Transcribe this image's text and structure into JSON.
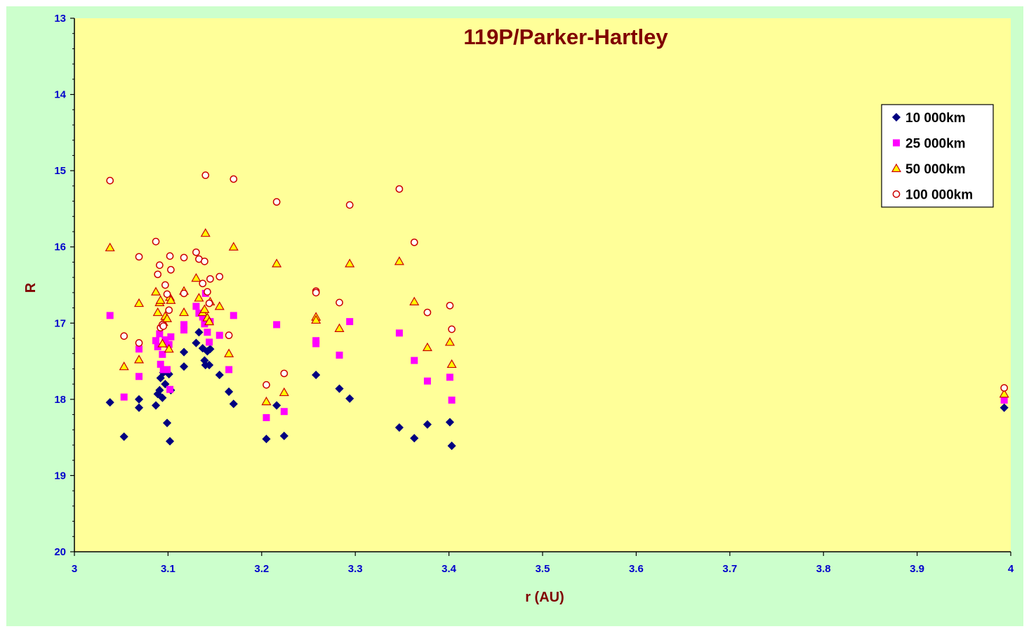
{
  "chart_data": {
    "type": "scatter",
    "title": "119P/Parker-Hartley",
    "xlabel": "r (AU)",
    "ylabel": "R",
    "xlim": [
      3,
      4
    ],
    "ylim": [
      13,
      20
    ],
    "y_inverted": true,
    "x_ticks": [
      "3",
      "3.1",
      "3.2",
      "3.3",
      "3.4",
      "3.5",
      "3.6",
      "3.7",
      "3.8",
      "3.9",
      "4"
    ],
    "y_ticks": [
      "13",
      "14",
      "15",
      "16",
      "17",
      "18",
      "19",
      "20"
    ],
    "grid": false,
    "legend_position": "top-right",
    "colors": {
      "outer_background": "#ccffcc",
      "plot_background": "#ffff99",
      "axis": "#000000",
      "tick_labels": "#0000cc",
      "titles": "#800000"
    },
    "series": [
      {
        "name": "10 000km",
        "marker": "diamond",
        "color": "#000080",
        "points": [
          [
            3.038,
            18.04
          ],
          [
            3.053,
            18.49
          ],
          [
            3.069,
            18.11
          ],
          [
            3.069,
            18.0
          ],
          [
            3.087,
            18.08
          ],
          [
            3.089,
            17.93
          ],
          [
            3.091,
            17.88
          ],
          [
            3.092,
            17.72
          ],
          [
            3.094,
            17.98
          ],
          [
            3.095,
            17.65
          ],
          [
            3.097,
            17.8
          ],
          [
            3.099,
            18.31
          ],
          [
            3.101,
            17.67
          ],
          [
            3.102,
            18.55
          ],
          [
            3.103,
            17.88
          ],
          [
            3.117,
            17.38
          ],
          [
            3.117,
            17.57
          ],
          [
            3.13,
            17.26
          ],
          [
            3.133,
            17.12
          ],
          [
            3.137,
            17.33
          ],
          [
            3.139,
            17.49
          ],
          [
            3.14,
            17.55
          ],
          [
            3.142,
            17.37
          ],
          [
            3.144,
            17.55
          ],
          [
            3.145,
            17.34
          ],
          [
            3.155,
            17.68
          ],
          [
            3.165,
            17.9
          ],
          [
            3.17,
            18.06
          ],
          [
            3.205,
            18.52
          ],
          [
            3.216,
            18.08
          ],
          [
            3.224,
            18.48
          ],
          [
            3.258,
            17.68
          ],
          [
            3.283,
            17.86
          ],
          [
            3.294,
            17.99
          ],
          [
            3.347,
            18.37
          ],
          [
            3.363,
            18.51
          ],
          [
            3.377,
            18.33
          ],
          [
            3.401,
            18.3
          ],
          [
            3.403,
            18.61
          ],
          [
            3.993,
            18.11
          ]
        ]
      },
      {
        "name": "25 000km",
        "marker": "square",
        "color": "#ff00ff",
        "points": [
          [
            3.038,
            16.9
          ],
          [
            3.053,
            17.97
          ],
          [
            3.069,
            17.34
          ],
          [
            3.069,
            17.7
          ],
          [
            3.087,
            17.23
          ],
          [
            3.089,
            17.31
          ],
          [
            3.091,
            17.14
          ],
          [
            3.092,
            17.54
          ],
          [
            3.094,
            17.41
          ],
          [
            3.095,
            17.61
          ],
          [
            3.097,
            17.22
          ],
          [
            3.099,
            17.61
          ],
          [
            3.101,
            17.28
          ],
          [
            3.102,
            17.87
          ],
          [
            3.103,
            17.18
          ],
          [
            3.117,
            17.02
          ],
          [
            3.117,
            17.09
          ],
          [
            3.13,
            16.78
          ],
          [
            3.133,
            16.87
          ],
          [
            3.137,
            16.92
          ],
          [
            3.139,
            17.01
          ],
          [
            3.14,
            16.61
          ],
          [
            3.142,
            17.12
          ],
          [
            3.144,
            17.25
          ],
          [
            3.145,
            16.98
          ],
          [
            3.155,
            17.16
          ],
          [
            3.165,
            17.61
          ],
          [
            3.17,
            16.9
          ],
          [
            3.205,
            18.24
          ],
          [
            3.216,
            17.02
          ],
          [
            3.224,
            18.16
          ],
          [
            3.258,
            17.23
          ],
          [
            3.258,
            17.27
          ],
          [
            3.283,
            17.42
          ],
          [
            3.294,
            16.98
          ],
          [
            3.347,
            17.13
          ],
          [
            3.363,
            17.49
          ],
          [
            3.377,
            17.76
          ],
          [
            3.401,
            17.71
          ],
          [
            3.403,
            18.01
          ],
          [
            3.993,
            18.01
          ]
        ]
      },
      {
        "name": "50 000km",
        "marker": "triangle",
        "color": "#cc0000",
        "fill": "#ffff00",
        "points": [
          [
            3.038,
            16.01
          ],
          [
            3.053,
            17.57
          ],
          [
            3.069,
            16.74
          ],
          [
            3.069,
            17.48
          ],
          [
            3.087,
            16.59
          ],
          [
            3.089,
            16.86
          ],
          [
            3.091,
            16.73
          ],
          [
            3.092,
            16.7
          ],
          [
            3.094,
            17.27
          ],
          [
            3.095,
            16.99
          ],
          [
            3.097,
            16.91
          ],
          [
            3.099,
            16.94
          ],
          [
            3.101,
            17.34
          ],
          [
            3.102,
            16.66
          ],
          [
            3.103,
            16.7
          ],
          [
            3.117,
            16.58
          ],
          [
            3.117,
            16.86
          ],
          [
            3.13,
            16.41
          ],
          [
            3.133,
            16.67
          ],
          [
            3.137,
            16.86
          ],
          [
            3.139,
            16.82
          ],
          [
            3.14,
            15.82
          ],
          [
            3.142,
            16.93
          ],
          [
            3.144,
            16.98
          ],
          [
            3.145,
            16.72
          ],
          [
            3.155,
            16.78
          ],
          [
            3.165,
            17.4
          ],
          [
            3.17,
            16.0
          ],
          [
            3.205,
            18.03
          ],
          [
            3.216,
            16.22
          ],
          [
            3.224,
            17.91
          ],
          [
            3.258,
            16.92
          ],
          [
            3.258,
            16.96
          ],
          [
            3.283,
            17.07
          ],
          [
            3.294,
            16.22
          ],
          [
            3.347,
            16.19
          ],
          [
            3.363,
            16.72
          ],
          [
            3.377,
            17.32
          ],
          [
            3.401,
            17.25
          ],
          [
            3.403,
            17.54
          ],
          [
            3.993,
            17.93
          ]
        ]
      },
      {
        "name": "100 000km",
        "marker": "circle",
        "color": "#cc0000",
        "fill": "#ffffff",
        "points": [
          [
            3.038,
            15.13
          ],
          [
            3.053,
            17.17
          ],
          [
            3.069,
            16.13
          ],
          [
            3.069,
            17.26
          ],
          [
            3.087,
            15.93
          ],
          [
            3.089,
            16.36
          ],
          [
            3.091,
            16.24
          ],
          [
            3.092,
            17.06
          ],
          [
            3.094,
            17.02
          ],
          [
            3.095,
            17.04
          ],
          [
            3.097,
            16.5
          ],
          [
            3.099,
            16.62
          ],
          [
            3.101,
            16.83
          ],
          [
            3.102,
            16.12
          ],
          [
            3.103,
            16.3
          ],
          [
            3.117,
            16.14
          ],
          [
            3.117,
            16.61
          ],
          [
            3.13,
            16.07
          ],
          [
            3.133,
            16.16
          ],
          [
            3.137,
            16.48
          ],
          [
            3.139,
            16.19
          ],
          [
            3.14,
            15.06
          ],
          [
            3.142,
            16.59
          ],
          [
            3.144,
            16.74
          ],
          [
            3.145,
            16.42
          ],
          [
            3.155,
            16.39
          ],
          [
            3.165,
            17.16
          ],
          [
            3.17,
            15.11
          ],
          [
            3.205,
            17.81
          ],
          [
            3.216,
            15.41
          ],
          [
            3.224,
            17.66
          ],
          [
            3.258,
            16.58
          ],
          [
            3.258,
            16.6
          ],
          [
            3.283,
            16.73
          ],
          [
            3.294,
            15.45
          ],
          [
            3.347,
            15.24
          ],
          [
            3.363,
            15.94
          ],
          [
            3.377,
            16.86
          ],
          [
            3.401,
            16.77
          ],
          [
            3.403,
            17.08
          ],
          [
            3.993,
            17.85
          ]
        ]
      }
    ]
  }
}
